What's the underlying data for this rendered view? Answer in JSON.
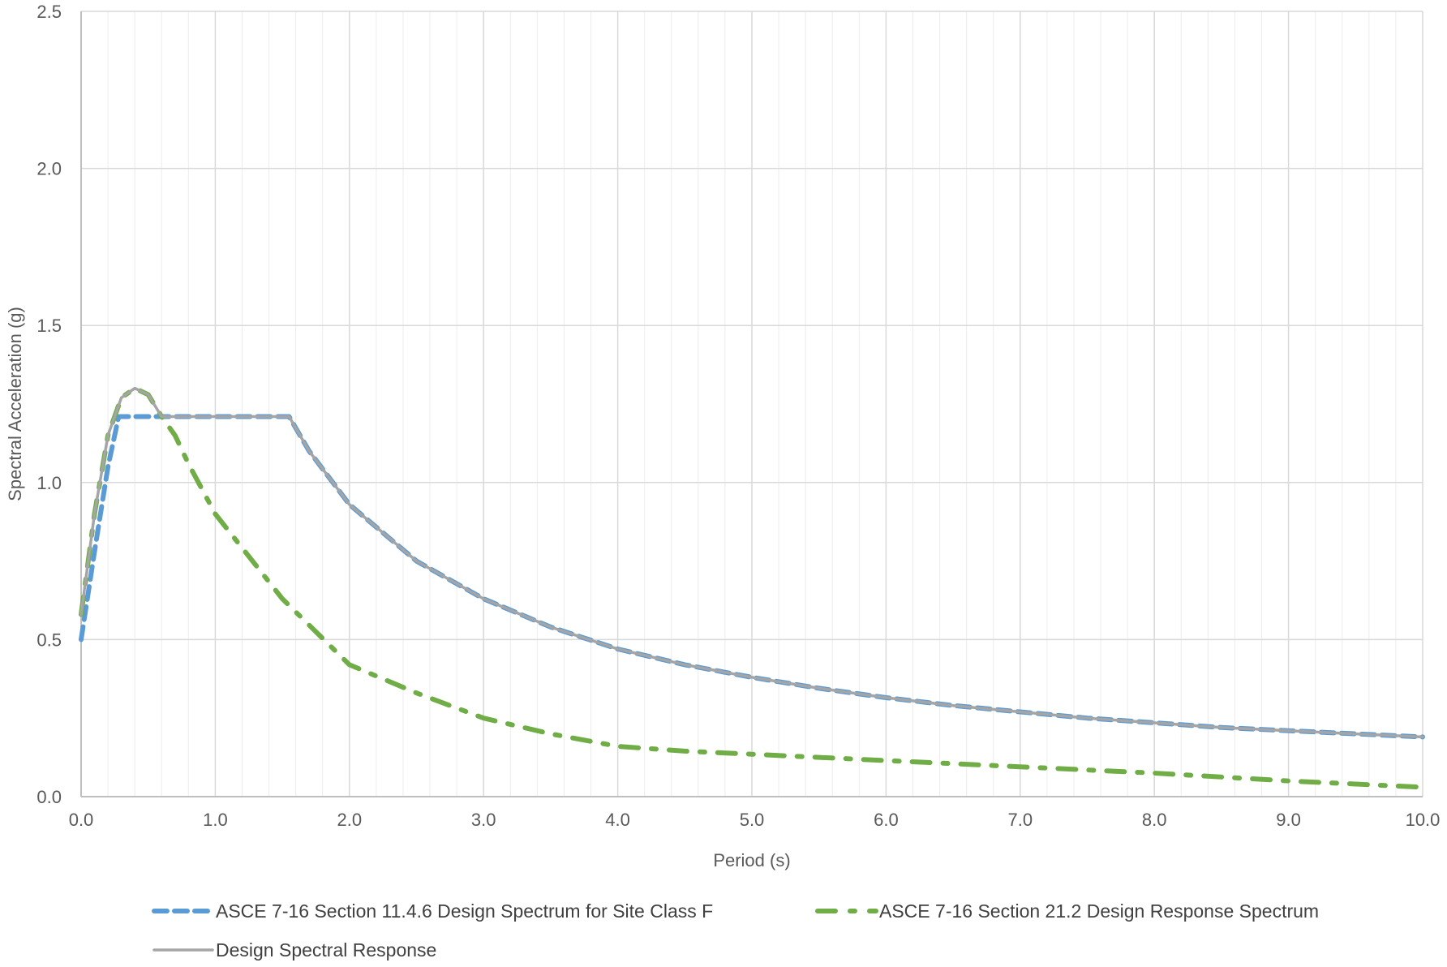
{
  "chart_data": {
    "type": "line",
    "xlabel": "Period (s)",
    "ylabel": "Spectral Acceleration (g)",
    "xlim": [
      0,
      10
    ],
    "ylim": [
      0,
      2.5
    ],
    "x_ticks": [
      "0.0",
      "1.0",
      "2.0",
      "3.0",
      "4.0",
      "5.0",
      "6.0",
      "7.0",
      "8.0",
      "9.0",
      "10.0"
    ],
    "y_ticks": [
      "0.0",
      "0.5",
      "1.0",
      "1.5",
      "2.0",
      "2.5"
    ],
    "grid": true,
    "legend_position": "bottom",
    "series": [
      {
        "name": "ASCE 7-16 Section 11.4.6 Design Spectrum for Site Class F",
        "color": "#5B9BD5",
        "style": "dashed",
        "points": [
          [
            0.0,
            0.5
          ],
          [
            0.1,
            0.78
          ],
          [
            0.2,
            1.05
          ],
          [
            0.28,
            1.21
          ],
          [
            0.6,
            1.21
          ],
          [
            1.0,
            1.21
          ],
          [
            1.55,
            1.21
          ],
          [
            1.7,
            1.1
          ],
          [
            2.0,
            0.93
          ],
          [
            2.5,
            0.75
          ],
          [
            3.0,
            0.63
          ],
          [
            3.5,
            0.54
          ],
          [
            4.0,
            0.47
          ],
          [
            4.5,
            0.42
          ],
          [
            5.0,
            0.38
          ],
          [
            5.5,
            0.345
          ],
          [
            6.0,
            0.315
          ],
          [
            6.5,
            0.29
          ],
          [
            7.0,
            0.27
          ],
          [
            7.5,
            0.25
          ],
          [
            8.0,
            0.235
          ],
          [
            8.5,
            0.22
          ],
          [
            9.0,
            0.21
          ],
          [
            9.5,
            0.2
          ],
          [
            10.0,
            0.19
          ]
        ]
      },
      {
        "name": "ASCE 7-16 Section 21.2 Design Response Spectrum",
        "color": "#70AD47",
        "style": "dash-dot",
        "points": [
          [
            0.0,
            0.58
          ],
          [
            0.1,
            0.9
          ],
          [
            0.2,
            1.15
          ],
          [
            0.3,
            1.27
          ],
          [
            0.4,
            1.3
          ],
          [
            0.5,
            1.28
          ],
          [
            0.6,
            1.21
          ],
          [
            0.7,
            1.15
          ],
          [
            0.8,
            1.06
          ],
          [
            1.0,
            0.9
          ],
          [
            1.5,
            0.63
          ],
          [
            2.0,
            0.42
          ],
          [
            2.5,
            0.33
          ],
          [
            3.0,
            0.25
          ],
          [
            3.5,
            0.2
          ],
          [
            4.0,
            0.16
          ],
          [
            4.5,
            0.145
          ],
          [
            5.0,
            0.135
          ],
          [
            6.0,
            0.115
          ],
          [
            7.0,
            0.095
          ],
          [
            8.0,
            0.075
          ],
          [
            9.0,
            0.05
          ],
          [
            10.0,
            0.03
          ]
        ]
      },
      {
        "name": "Design Spectral Response",
        "color": "#A5A5A5",
        "style": "solid",
        "points": [
          [
            0.0,
            0.58
          ],
          [
            0.1,
            0.9
          ],
          [
            0.2,
            1.15
          ],
          [
            0.3,
            1.27
          ],
          [
            0.4,
            1.3
          ],
          [
            0.5,
            1.28
          ],
          [
            0.6,
            1.21
          ],
          [
            1.0,
            1.21
          ],
          [
            1.55,
            1.21
          ],
          [
            1.7,
            1.1
          ],
          [
            2.0,
            0.93
          ],
          [
            2.5,
            0.75
          ],
          [
            3.0,
            0.63
          ],
          [
            3.5,
            0.54
          ],
          [
            4.0,
            0.47
          ],
          [
            4.5,
            0.42
          ],
          [
            5.0,
            0.38
          ],
          [
            5.5,
            0.345
          ],
          [
            6.0,
            0.315
          ],
          [
            6.5,
            0.29
          ],
          [
            7.0,
            0.27
          ],
          [
            7.5,
            0.25
          ],
          [
            8.0,
            0.235
          ],
          [
            8.5,
            0.22
          ],
          [
            9.0,
            0.21
          ],
          [
            9.5,
            0.2
          ],
          [
            10.0,
            0.19
          ]
        ]
      }
    ]
  }
}
